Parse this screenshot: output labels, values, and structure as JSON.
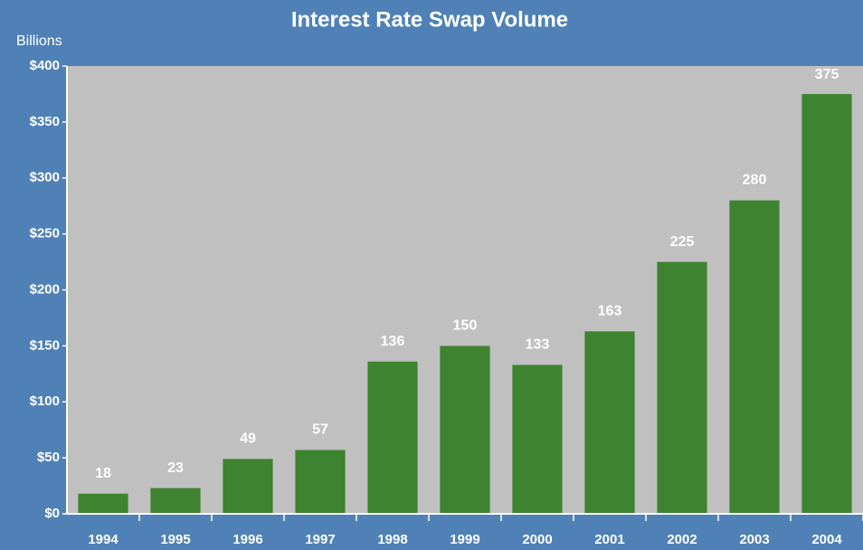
{
  "chart_data": {
    "type": "bar",
    "title": "Interest Rate Swap Volume",
    "y_label": "Billions",
    "categories": [
      "1994",
      "1995",
      "1996",
      "1997",
      "1998",
      "1999",
      "2000",
      "2001",
      "2002",
      "2003",
      "2004"
    ],
    "values": [
      18,
      23,
      49,
      57,
      136,
      150,
      133,
      163,
      225,
      280,
      375
    ],
    "color": "#3e832f",
    "ylim": [
      0,
      400
    ],
    "yticks": [
      {
        "value": 0,
        "label": "$0"
      },
      {
        "value": 50,
        "label": "$50"
      },
      {
        "value": 100,
        "label": "$100"
      },
      {
        "value": 150,
        "label": "$150"
      },
      {
        "value": 200,
        "label": "$200"
      },
      {
        "value": 250,
        "label": "$250"
      },
      {
        "value": 300,
        "label": "$300"
      },
      {
        "value": 350,
        "label": "$350"
      },
      {
        "value": 400,
        "label": "$400"
      }
    ]
  }
}
